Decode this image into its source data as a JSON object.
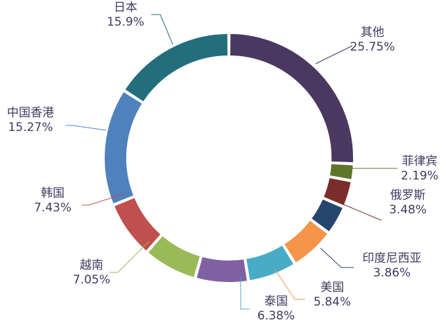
{
  "chart_data": {
    "type": "pie",
    "donut": true,
    "title": "",
    "label_format": "name-over-percent",
    "slices": [
      {
        "name": "其他",
        "percent_label": "25.75%",
        "value": 25.75,
        "color": "#4a3860"
      },
      {
        "name": "菲律宾",
        "percent_label": "2.19%",
        "value": 2.19,
        "color": "#60752c"
      },
      {
        "name": "俄罗斯",
        "percent_label": "3.48%",
        "value": 3.48,
        "color": "#7a2e2c"
      },
      {
        "name": "印度尼西亚",
        "percent_label": "3.86%",
        "value": 3.86,
        "color": "#26466e"
      },
      {
        "name": "美国",
        "percent_label": "5.84%",
        "value": 5.84,
        "color": "#f4954a"
      },
      {
        "name": "泰国",
        "percent_label": "6.38%",
        "value": 6.38,
        "color": "#49acc6"
      },
      {
        "name": "",
        "percent_label": "",
        "value": 6.88,
        "color": "#7f61a4"
      },
      {
        "name": "越南",
        "percent_label": "7.05%",
        "value": 7.05,
        "color": "#9aba59"
      },
      {
        "name": "韩国",
        "percent_label": "7.43%",
        "value": 7.43,
        "color": "#c0504d"
      },
      {
        "name": "中国香港",
        "percent_label": "15.27%",
        "value": 15.27,
        "color": "#4f81bd"
      },
      {
        "name": "日本",
        "percent_label": "15.9%",
        "value": 15.9,
        "color": "#236e7c"
      }
    ]
  }
}
